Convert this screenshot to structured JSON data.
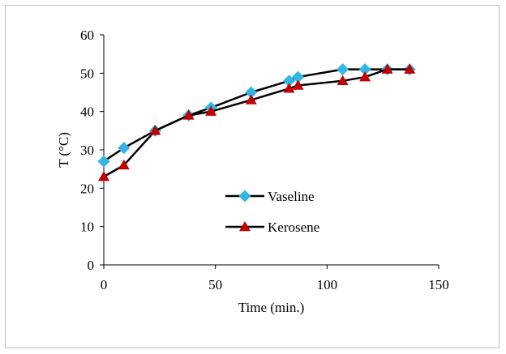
{
  "chart_data": {
    "type": "line",
    "xlabel": "Time (min.)",
    "ylabel": "T (°C)",
    "xlim": [
      0,
      150
    ],
    "ylim": [
      0,
      60
    ],
    "x_ticks": [
      0,
      50,
      100,
      150
    ],
    "y_ticks": [
      0,
      10,
      20,
      30,
      40,
      50,
      60
    ],
    "grid": false,
    "legend_position": "right",
    "series": [
      {
        "name": "Vaseline",
        "marker": "diamond",
        "line_color": "#000000",
        "marker_color": "#33b5e5",
        "x": [
          0,
          9,
          23,
          38,
          48,
          66,
          83,
          87,
          107,
          117,
          127,
          137
        ],
        "y": [
          27,
          30.5,
          35,
          39,
          41,
          45,
          48,
          49,
          51,
          51,
          51,
          51
        ]
      },
      {
        "name": "Kerosene",
        "marker": "triangle",
        "line_color": "#000000",
        "marker_color": "#c00000",
        "x": [
          0,
          9,
          23,
          38,
          48,
          66,
          83,
          87,
          107,
          117,
          127,
          137
        ],
        "y": [
          23,
          26,
          35,
          39,
          40,
          43,
          46,
          46.8,
          48,
          49,
          51,
          51
        ]
      }
    ]
  }
}
